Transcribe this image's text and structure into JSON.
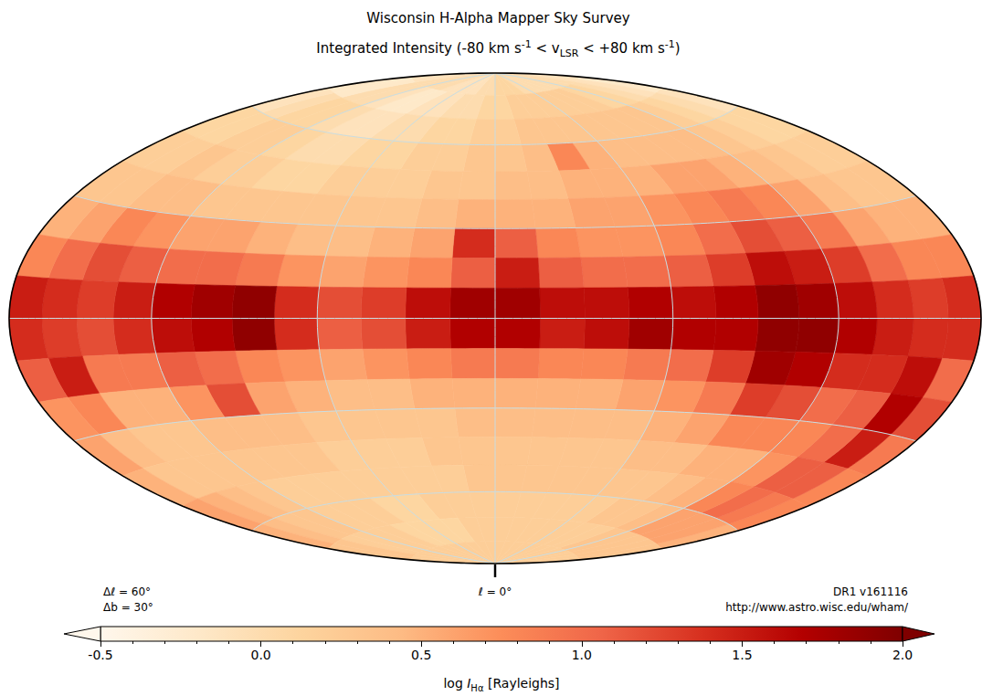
{
  "chart_data": {
    "type": "heatmap",
    "title": "Wisconsin H-Alpha Mapper Sky Survey",
    "subtitle": [
      {
        "text": "Integrated Intensity (-80 km s",
        "style": "normal"
      },
      {
        "text": "-1",
        "style": "sup"
      },
      {
        "text": " < v",
        "style": "normal"
      },
      {
        "text": "LSR",
        "style": "sub"
      },
      {
        "text": " < +80 km s",
        "style": "normal"
      },
      {
        "text": "-1",
        "style": "sup"
      },
      {
        "text": ")",
        "style": "normal"
      }
    ],
    "annotations": {
      "left": [
        "Δℓ = 60°",
        "Δb = 30°"
      ],
      "center": "ℓ = 0°",
      "right": [
        "DR1 v161116",
        "http://www.astro.wisc.edu/wham/"
      ]
    },
    "graticule": {
      "l_step": 60,
      "b_step": 30
    },
    "l_bins": [
      0,
      15,
      30,
      45,
      60,
      75,
      90,
      105,
      120,
      135,
      150,
      165,
      180,
      195,
      210,
      225,
      240,
      255,
      270,
      285,
      300,
      315,
      330,
      345,
      360
    ],
    "b_bins": [
      90,
      80,
      70,
      60,
      50,
      40,
      30,
      20,
      10,
      0,
      -10,
      -20,
      -30,
      -40,
      -50,
      -60,
      -70,
      -80,
      -90
    ],
    "values": [
      [
        0.0,
        0.0,
        -0.1,
        -0.1,
        -0.1,
        -0.1,
        0.0,
        0.0,
        0.0,
        0.0,
        -0.1,
        -0.1,
        -0.1,
        -0.1,
        0.0,
        0.0,
        0.0,
        0.0,
        0.0,
        0.0,
        0.0,
        0.1,
        0.1,
        0.1
      ],
      [
        0.1,
        0.0,
        0.0,
        -0.1,
        -0.1,
        -0.2,
        -0.2,
        -0.1,
        0.0,
        0.0,
        -0.2,
        -0.2,
        -0.2,
        -0.1,
        0.0,
        0.1,
        0.1,
        0.2,
        0.2,
        0.2,
        0.2,
        0.2,
        0.2,
        0.1
      ],
      [
        0.2,
        0.1,
        0.1,
        0.0,
        0.0,
        -0.1,
        -0.1,
        0.0,
        0.1,
        0.1,
        0.0,
        -0.1,
        -0.1,
        0.0,
        0.1,
        0.2,
        0.3,
        0.3,
        0.3,
        0.3,
        0.3,
        0.3,
        0.3,
        0.2
      ],
      [
        0.3,
        0.2,
        0.2,
        0.1,
        0.1,
        0.0,
        0.0,
        0.1,
        0.2,
        0.2,
        0.1,
        0.1,
        0.1,
        0.1,
        0.2,
        0.3,
        0.4,
        0.4,
        0.4,
        0.4,
        0.5,
        0.8,
        0.4,
        0.3
      ],
      [
        0.3,
        0.3,
        0.2,
        0.2,
        0.2,
        0.1,
        0.1,
        0.2,
        0.2,
        0.3,
        0.2,
        0.2,
        0.2,
        0.2,
        0.3,
        0.4,
        0.5,
        0.6,
        0.6,
        0.5,
        0.5,
        0.5,
        0.4,
        0.4
      ],
      [
        0.5,
        0.4,
        0.3,
        0.3,
        0.3,
        0.3,
        0.3,
        0.3,
        0.4,
        0.4,
        0.3,
        0.3,
        0.3,
        0.3,
        0.4,
        0.6,
        0.8,
        0.9,
        0.8,
        0.7,
        0.6,
        0.6,
        0.5,
        0.5
      ],
      [
        1.4,
        0.6,
        0.5,
        0.4,
        0.4,
        0.5,
        0.6,
        0.6,
        0.7,
        0.8,
        0.6,
        0.5,
        0.5,
        0.5,
        0.6,
        0.9,
        1.1,
        1.2,
        1.0,
        0.8,
        0.7,
        0.7,
        0.8,
        1.1
      ],
      [
        1.1,
        0.8,
        0.7,
        0.6,
        0.7,
        0.9,
        1.0,
        1.0,
        1.1,
        1.2,
        1.0,
        0.8,
        0.8,
        0.8,
        1.0,
        1.3,
        1.5,
        1.6,
        1.3,
        1.1,
        1.0,
        1.0,
        1.1,
        1.5
      ],
      [
        1.8,
        1.6,
        1.3,
        1.2,
        1.4,
        1.9,
        1.8,
        1.7,
        1.5,
        1.3,
        1.4,
        1.5,
        1.4,
        1.3,
        1.4,
        1.6,
        1.8,
        1.9,
        1.7,
        1.6,
        1.7,
        1.6,
        1.6,
        1.8
      ],
      [
        1.7,
        1.5,
        1.2,
        1.1,
        1.4,
        1.9,
        1.7,
        1.6,
        1.4,
        1.2,
        1.3,
        1.4,
        1.4,
        1.4,
        1.5,
        1.7,
        1.9,
        1.9,
        1.7,
        1.7,
        1.8,
        1.6,
        1.5,
        1.7
      ],
      [
        0.9,
        0.8,
        0.7,
        0.6,
        0.7,
        0.8,
        1.0,
        1.1,
        0.9,
        0.9,
        1.5,
        1.1,
        1.0,
        1.6,
        1.4,
        1.4,
        1.7,
        1.8,
        1.3,
        1.0,
        0.9,
        0.8,
        0.8,
        0.9
      ],
      [
        0.5,
        0.5,
        0.4,
        0.4,
        0.5,
        0.6,
        1.2,
        0.7,
        0.5,
        0.5,
        0.8,
        0.7,
        1.2,
        1.7,
        1.1,
        1.0,
        1.2,
        1.3,
        0.9,
        0.7,
        0.6,
        0.5,
        0.5,
        0.5
      ],
      [
        0.4,
        0.3,
        0.3,
        0.3,
        0.3,
        0.4,
        0.4,
        0.4,
        0.3,
        0.3,
        0.4,
        0.6,
        0.9,
        1.5,
        1.0,
        0.8,
        0.8,
        0.8,
        0.6,
        0.5,
        0.4,
        0.4,
        0.4,
        0.4
      ],
      [
        0.3,
        0.3,
        0.2,
        0.2,
        0.2,
        0.3,
        0.3,
        0.3,
        0.3,
        0.3,
        0.3,
        0.5,
        0.8,
        1.1,
        1.1,
        0.7,
        0.5,
        0.5,
        0.4,
        0.4,
        0.3,
        0.3,
        0.3,
        0.3
      ],
      [
        0.3,
        0.2,
        0.2,
        0.2,
        0.2,
        0.2,
        0.2,
        0.2,
        0.3,
        0.4,
        0.5,
        0.6,
        0.8,
        0.9,
        1.0,
        0.8,
        0.5,
        0.4,
        0.3,
        0.3,
        0.3,
        0.3,
        0.3,
        0.3
      ],
      [
        0.2,
        0.2,
        0.2,
        0.1,
        0.1,
        0.2,
        0.2,
        0.2,
        0.3,
        0.3,
        0.4,
        0.5,
        0.5,
        0.6,
        0.6,
        0.6,
        0.4,
        0.3,
        0.3,
        0.2,
        0.2,
        0.2,
        0.2,
        0.2
      ],
      [
        0.2,
        0.2,
        0.1,
        0.1,
        0.1,
        0.1,
        0.2,
        0.2,
        0.2,
        0.2,
        0.3,
        0.3,
        0.3,
        0.3,
        0.3,
        0.3,
        0.3,
        0.2,
        0.2,
        0.2,
        0.2,
        0.2,
        0.2,
        0.2
      ],
      [
        0.2,
        0.2,
        0.2,
        0.2,
        0.2,
        0.2,
        0.2,
        0.2,
        0.2,
        0.2,
        0.2,
        0.2,
        0.2,
        0.2,
        0.2,
        0.2,
        0.2,
        0.2,
        0.2,
        0.2,
        0.2,
        0.2,
        0.2,
        0.2
      ]
    ],
    "colorbar": {
      "label": [
        {
          "text": "log ",
          "style": "normal"
        },
        {
          "text": "I",
          "style": "italic"
        },
        {
          "text": "Hα",
          "style": "sub"
        },
        {
          "text": " [Rayleighs]",
          "style": "normal"
        }
      ],
      "range": [
        -0.5,
        2
      ],
      "ticks": [
        -0.5,
        {
          "value": 0,
          "label": "0.0"
        },
        0.5,
        {
          "value": 1,
          "label": "1.0"
        },
        1.5,
        {
          "value": 2,
          "label": "2.0"
        }
      ],
      "extend": true
    }
  }
}
